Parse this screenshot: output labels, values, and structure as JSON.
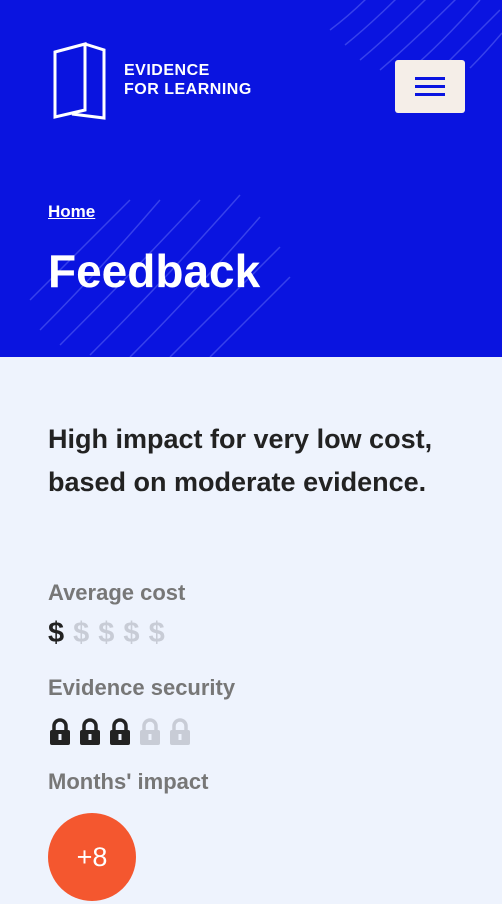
{
  "header": {
    "logo": [
      "EVIDENCE",
      "FOR LEARNING"
    ],
    "breadcrumb": "Home",
    "title": "Feedback"
  },
  "summary": "High impact for very low cost, based on moderate evidence.",
  "cost": {
    "label": "Average cost",
    "symbol": "$",
    "rating": 1,
    "max": 5
  },
  "evidence": {
    "label": "Evidence security",
    "rating": 3,
    "max": 5
  },
  "impact": {
    "label": "Months' impact",
    "value": "+8"
  }
}
